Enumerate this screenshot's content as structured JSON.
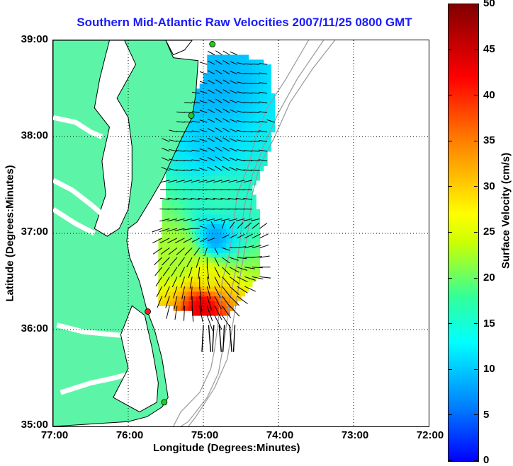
{
  "title": "Southern Mid-Atlantic Raw Velocities 2007/11/25 0800 GMT",
  "xaxis": {
    "label": "Longitude (Degrees:Minutes)",
    "ticks": [
      "77:00",
      "76:00",
      "75:00",
      "74:00",
      "73:00",
      "72:00"
    ]
  },
  "yaxis": {
    "label": "Latitude (Degrees:Minutes)",
    "ticks": [
      "39:00",
      "38:00",
      "37:00",
      "36:00",
      "35:00"
    ]
  },
  "colorbar": {
    "label": "Surface Velocity (cm/s)",
    "ticks": [
      "50",
      "45",
      "40",
      "35",
      "30",
      "25",
      "20",
      "15",
      "10",
      "5",
      "0"
    ]
  },
  "colors": {
    "land": "#5cf5a8",
    "coastline": "#000000",
    "bathymetry": "#999999",
    "vector": "#000000",
    "station_normal": "#22cc22",
    "station_alert": "#ff1a1a",
    "title": "#1a1aff"
  },
  "map_data": {
    "lon_range": [
      -77,
      -72
    ],
    "lat_range": [
      35,
      39
    ],
    "grid": "dotted",
    "stations": [
      {
        "lon": -74.88,
        "lat": 38.96,
        "status": "normal"
      },
      {
        "lon": -75.16,
        "lat": 38.22,
        "status": "normal"
      },
      {
        "lon": -75.74,
        "lat": 36.19,
        "status": "alert"
      },
      {
        "lon": -75.52,
        "lat": 35.25,
        "status": "normal"
      }
    ],
    "speed_hotspots": [
      {
        "lon": -74.85,
        "lat": 38.5,
        "speed": 8
      },
      {
        "lon": -74.9,
        "lat": 37.9,
        "speed": 9
      },
      {
        "lon": -74.8,
        "lat": 37.35,
        "speed": 14
      },
      {
        "lon": -74.85,
        "lat": 36.95,
        "speed": 7
      },
      {
        "lon": -75.3,
        "lat": 36.75,
        "speed": 21
      },
      {
        "lon": -74.95,
        "lat": 36.55,
        "speed": 26
      },
      {
        "lon": -75.0,
        "lat": 36.25,
        "speed": 44
      }
    ]
  }
}
